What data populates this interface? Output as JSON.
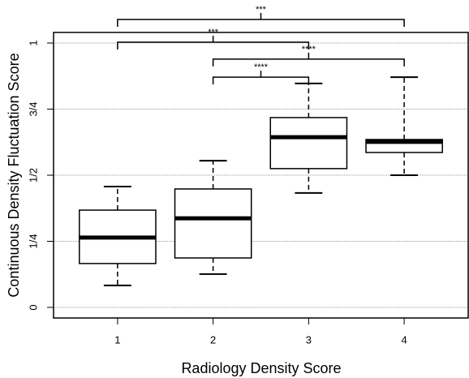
{
  "chart_data": {
    "type": "box",
    "x_label": "Radiology Density Score",
    "y_label": "Continuous Density Fluctuation Score",
    "x": [
      1,
      2,
      3,
      4
    ],
    "xticks": [
      1,
      2,
      3,
      4
    ],
    "xlim": [
      0.33,
      4.67
    ],
    "ylim": [
      -0.04,
      1.04
    ],
    "yticks": [
      0,
      {
        "value": 0.25,
        "label": "1/4"
      },
      {
        "value": 0.5,
        "label": "1/2"
      },
      {
        "value": 0.75,
        "label": "3/4"
      },
      1
    ],
    "grid": true,
    "boxes": {
      "whisker_low": [
        0.083,
        0.126,
        0.433,
        0.5
      ],
      "q1": [
        0.166,
        0.187,
        0.525,
        0.586
      ],
      "median": [
        0.264,
        0.337,
        0.644,
        0.626
      ],
      "q3": [
        0.368,
        0.448,
        0.718,
        0.635
      ],
      "whisker_high": [
        0.457,
        0.555,
        0.847,
        0.871
      ]
    },
    "brackets": [
      {
        "from": 1,
        "to": 4,
        "y": 1.089,
        "label": "***"
      },
      {
        "from": 1,
        "to": 3,
        "y": 1.003,
        "label": "***"
      },
      {
        "from": 2,
        "to": 4,
        "y": 0.939,
        "label": "****"
      },
      {
        "from": 2,
        "to": 3,
        "y": 0.871,
        "label": "****"
      }
    ]
  }
}
